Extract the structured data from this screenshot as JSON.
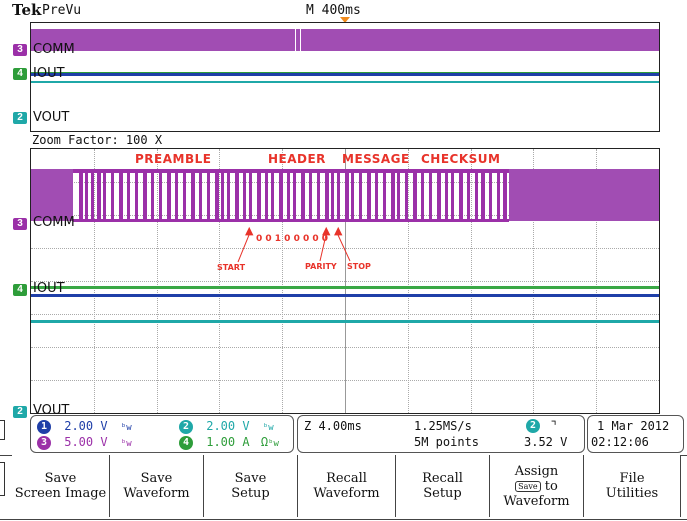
{
  "header": {
    "brand": "Tek",
    "mode": "PreVu",
    "timebase": "M 400ms"
  },
  "overview": {
    "channels": [
      {
        "tag": "3",
        "label": "COMM",
        "color": "#9b30a8"
      },
      {
        "tag": "4",
        "label": "IOUT",
        "color": "#2e9d3a"
      },
      {
        "tag": "2",
        "label": "VOUT",
        "color": "#1fa8a8"
      }
    ]
  },
  "zoom": {
    "factor_label": "Zoom Factor: 100 X",
    "annotations": {
      "preamble": "PREAMBLE",
      "header": "HEADER",
      "message": "MESSAGE",
      "checksum": "CHECKSUM",
      "bits": "0 0 1 0 0 0 0 0",
      "start": "START",
      "parity": "PARITY",
      "stop": "STOP"
    },
    "channels": [
      {
        "tag": "3",
        "label": "COMM"
      },
      {
        "tag": "4",
        "label": "IOUT"
      },
      {
        "tag": "2",
        "label": "VOUT"
      }
    ]
  },
  "readouts": {
    "ch1": {
      "num": "1",
      "scale": "2.00 V",
      "color": "#1f3fa8"
    },
    "ch2": {
      "num": "2",
      "scale": "2.00 V",
      "color": "#1fa8a8"
    },
    "ch3": {
      "num": "3",
      "scale": "5.00 V",
      "color": "#9b30a8"
    },
    "ch4": {
      "num": "4",
      "scale": "1.00 A",
      "unit_suffix": "Ω",
      "color": "#2e9d3a"
    },
    "zoom_time": "Z 4.00ms",
    "sample_rate": "1.25MS/s",
    "record_length": "5M points",
    "trigger_channel": "2",
    "trigger_level": "3.52 V",
    "date": "1 Mar 2012",
    "time": "02:12:06"
  },
  "buttons": [
    {
      "line1": "Save",
      "line2": "Screen Image"
    },
    {
      "line1": "Save",
      "line2": "Waveform"
    },
    {
      "line1": "Save",
      "line2": "Setup"
    },
    {
      "line1": "Recall",
      "line2": "Waveform"
    },
    {
      "line1": "Recall",
      "line2": "Setup"
    },
    {
      "line1": "Assign",
      "line2a": "Save",
      "line2b": "to",
      "line3": "Waveform"
    },
    {
      "line1": "File",
      "line2": "Utilities"
    }
  ]
}
